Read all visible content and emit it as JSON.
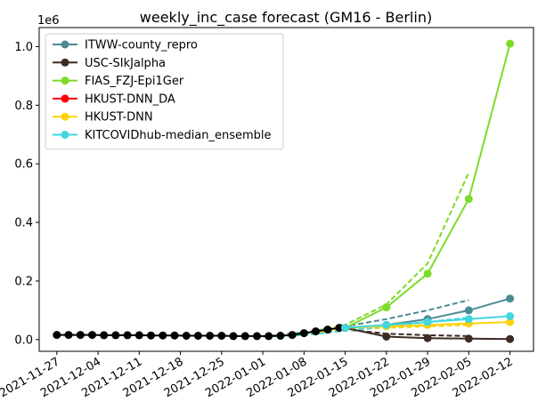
{
  "chart_data": {
    "type": "line",
    "title": "weekly_inc_case forecast (GM16 - Berlin)",
    "xlabel": "",
    "ylabel": "",
    "y_offset_label": "1e6",
    "ylim": [
      -0.04,
      1.065
    ],
    "xlim": [
      "2021-11-24",
      "2022-02-08"
    ],
    "x_ticks": [
      "2021-11-27",
      "2021-12-04",
      "2021-12-11",
      "2021-12-18",
      "2021-12-25",
      "2022-01-01",
      "2022-01-08",
      "2022-01-15",
      "2022-01-22",
      "2022-01-29",
      "2022-02-05",
      "2022-02-12"
    ],
    "y_ticks": [
      0.0,
      0.2,
      0.4,
      0.6,
      0.8,
      1.0
    ],
    "legend_position": "upper-left",
    "grid": false,
    "observed": {
      "color": "#000000",
      "x": [
        "2021-11-27",
        "2021-11-29",
        "2021-12-01",
        "2021-12-03",
        "2021-12-05",
        "2021-12-07",
        "2021-12-09",
        "2021-12-11",
        "2021-12-13",
        "2021-12-15",
        "2021-12-17",
        "2021-12-19",
        "2021-12-21",
        "2021-12-23",
        "2021-12-25",
        "2021-12-27",
        "2021-12-29",
        "2021-12-31",
        "2022-01-02",
        "2022-01-04",
        "2022-01-06",
        "2022-01-08",
        "2022-01-10",
        "2022-01-12",
        "2022-01-14"
      ],
      "y": [
        0.016,
        0.016,
        0.016,
        0.016,
        0.015,
        0.015,
        0.015,
        0.015,
        0.014,
        0.014,
        0.014,
        0.013,
        0.013,
        0.013,
        0.013,
        0.012,
        0.012,
        0.012,
        0.012,
        0.013,
        0.016,
        0.022,
        0.028,
        0.034,
        0.04
      ]
    },
    "series": [
      {
        "name": "ITWW-county_repro",
        "color": "#4d8b94",
        "x": [
          "2022-01-15",
          "2022-01-22",
          "2022-01-29",
          "2022-02-05",
          "2022-02-12"
        ],
        "y": [
          0.04,
          0.05,
          0.07,
          0.1,
          0.14
        ],
        "dashed_x": [
          "2022-01-01",
          "2022-01-08",
          "2022-01-15",
          "2022-01-22",
          "2022-01-29",
          "2022-02-05"
        ],
        "dashed_y": [
          0.01,
          0.025,
          0.045,
          0.07,
          0.1,
          0.135
        ]
      },
      {
        "name": "USC-SIkJalpha",
        "color": "#3d2b23",
        "x": [
          "2022-01-15",
          "2022-01-22",
          "2022-01-29",
          "2022-02-05",
          "2022-02-12"
        ],
        "y": [
          0.04,
          0.01,
          0.005,
          0.003,
          0.002
        ],
        "dashed_x": [
          "2022-01-01",
          "2022-01-08",
          "2022-01-15",
          "2022-01-22",
          "2022-01-29",
          "2022-02-05"
        ],
        "dashed_y": [
          0.01,
          0.02,
          0.035,
          0.02,
          0.015,
          0.012
        ]
      },
      {
        "name": "FIAS_FZJ-Epi1Ger",
        "color": "#7ddb2a",
        "x": [
          "2022-01-15",
          "2022-01-22",
          "2022-01-29",
          "2022-02-05",
          "2022-02-12"
        ],
        "y": [
          0.04,
          0.11,
          0.225,
          0.48,
          1.01
        ],
        "dashed_x": [
          "2022-01-01",
          "2022-01-08",
          "2022-01-15",
          "2022-01-22",
          "2022-01-29",
          "2022-02-05"
        ],
        "dashed_y": [
          0.01,
          0.02,
          0.05,
          0.12,
          0.26,
          0.57
        ]
      },
      {
        "name": "HKUST-DNN_DA",
        "color": "#ff0000",
        "x": [],
        "y": []
      },
      {
        "name": "HKUST-DNN",
        "color": "#ffd20a",
        "x": [
          "2022-01-15",
          "2022-01-22",
          "2022-01-29",
          "2022-02-05",
          "2022-02-12"
        ],
        "y": [
          0.04,
          0.045,
          0.05,
          0.055,
          0.06
        ],
        "dashed_x": [
          "2022-01-01",
          "2022-01-08",
          "2022-01-15",
          "2022-01-22",
          "2022-01-29",
          "2022-02-05"
        ],
        "dashed_y": [
          0.01,
          0.02,
          0.035,
          0.04,
          0.045,
          0.05
        ]
      },
      {
        "name": "KITCOVIDhub-median_ensemble",
        "color": "#40d7de",
        "x": [
          "2022-01-15",
          "2022-01-22",
          "2022-01-29",
          "2022-02-05",
          "2022-02-12"
        ],
        "y": [
          0.04,
          0.05,
          0.06,
          0.07,
          0.08
        ],
        "dashed_x": [
          "2022-01-01",
          "2022-01-08",
          "2022-01-15",
          "2022-01-22",
          "2022-01-29",
          "2022-02-05"
        ],
        "dashed_y": [
          0.01,
          0.015,
          0.03,
          0.045,
          0.06,
          0.075
        ]
      }
    ]
  }
}
